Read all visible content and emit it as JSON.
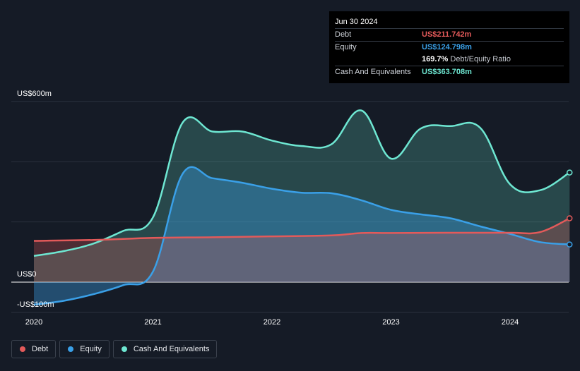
{
  "tooltip": {
    "date": "Jun 30 2024",
    "rows": [
      {
        "label": "Debt",
        "value": "US$211.742m",
        "color": "#e35a5a"
      },
      {
        "label": "Equity",
        "value": "US$124.798m",
        "color": "#3aa0e8"
      },
      {
        "label": "",
        "value": "169.7%",
        "sub": "Debt/Equity Ratio",
        "color": "#ffffff"
      },
      {
        "label": "Cash And Equivalents",
        "value": "US$363.708m",
        "color": "#6ee7d2"
      }
    ]
  },
  "legend": [
    {
      "label": "Debt",
      "color": "#e35a5a"
    },
    {
      "label": "Equity",
      "color": "#3aa0e8"
    },
    {
      "label": "Cash And Equivalents",
      "color": "#6ee7d2"
    }
  ],
  "chart_data": {
    "type": "area",
    "y_tick_labels": [
      "US$600m",
      "US$0",
      "-US$100m"
    ],
    "ylim": [
      -100,
      600
    ],
    "xlim": [
      2019.92,
      2024.5
    ],
    "x_tick_labels": [
      "2020",
      "2021",
      "2022",
      "2023",
      "2024"
    ],
    "x_ticks": [
      2020,
      2021,
      2022,
      2023,
      2024
    ],
    "grid": true,
    "legend_position": "bottom-left",
    "series": [
      {
        "name": "Debt",
        "color": "#e35a5a",
        "x": [
          2020.0,
          2020.5,
          2021.0,
          2021.5,
          2022.0,
          2022.5,
          2022.75,
          2023.0,
          2023.5,
          2024.0,
          2024.25,
          2024.5
        ],
        "y": [
          137,
          140,
          147,
          149,
          152,
          155,
          163,
          163,
          164,
          164,
          166,
          212
        ]
      },
      {
        "name": "Equity",
        "color": "#3aa0e8",
        "x": [
          2020.0,
          2020.25,
          2020.5,
          2020.75,
          2021.0,
          2021.25,
          2021.5,
          2021.75,
          2022.0,
          2022.25,
          2022.5,
          2022.75,
          2023.0,
          2023.25,
          2023.5,
          2023.75,
          2024.0,
          2024.25,
          2024.5
        ],
        "y": [
          -75,
          -62,
          -40,
          -10,
          35,
          360,
          345,
          330,
          310,
          297,
          295,
          272,
          240,
          225,
          212,
          185,
          160,
          133,
          125
        ]
      },
      {
        "name": "Cash And Equivalents",
        "color": "#6ee7d2",
        "x": [
          2020.0,
          2020.25,
          2020.5,
          2020.75,
          2021.0,
          2021.25,
          2021.5,
          2021.75,
          2022.0,
          2022.25,
          2022.5,
          2022.75,
          2023.0,
          2023.25,
          2023.5,
          2023.75,
          2024.0,
          2024.25,
          2024.5
        ],
        "y": [
          87,
          103,
          128,
          170,
          215,
          530,
          500,
          500,
          470,
          452,
          458,
          570,
          410,
          510,
          518,
          512,
          325,
          305,
          364
        ]
      }
    ]
  }
}
